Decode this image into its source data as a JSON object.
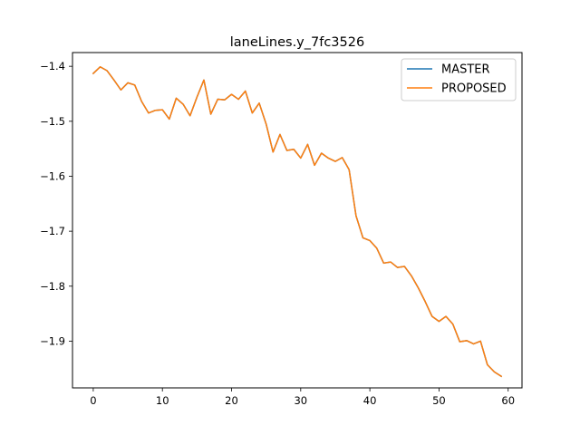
{
  "chart_data": {
    "type": "line",
    "title": "laneLines.y_7fc3526",
    "xlabel": "",
    "ylabel": "",
    "xlim": [
      -3,
      62
    ],
    "ylim": [
      -1.985,
      -1.375
    ],
    "xticks": [
      0,
      10,
      20,
      30,
      40,
      50,
      60
    ],
    "yticks": [
      -1.4,
      -1.5,
      -1.6,
      -1.7,
      -1.8,
      -1.9
    ],
    "grid": false,
    "legend_position": "top-right",
    "x": [
      0,
      1,
      2,
      3,
      4,
      5,
      6,
      7,
      8,
      9,
      10,
      11,
      12,
      13,
      14,
      15,
      16,
      17,
      18,
      19,
      20,
      21,
      22,
      23,
      24,
      25,
      26,
      27,
      28,
      29,
      30,
      31,
      32,
      33,
      34,
      35,
      36,
      37,
      38,
      39,
      40,
      41,
      42,
      43,
      44,
      45,
      46,
      47,
      48,
      49,
      50,
      51,
      52,
      53,
      54,
      55,
      56,
      57,
      58,
      59
    ],
    "series": [
      {
        "name": "MASTER",
        "color": "#1f77b4",
        "values": [
          -1.413,
          -1.401,
          -1.408,
          -1.425,
          -1.443,
          -1.43,
          -1.434,
          -1.464,
          -1.485,
          -1.48,
          -1.479,
          -1.496,
          -1.458,
          -1.469,
          -1.49,
          -1.456,
          -1.425,
          -1.487,
          -1.46,
          -1.461,
          -1.451,
          -1.46,
          -1.445,
          -1.485,
          -1.467,
          -1.505,
          -1.556,
          -1.524,
          -1.553,
          -1.551,
          -1.567,
          -1.542,
          -1.58,
          -1.558,
          -1.567,
          -1.573,
          -1.566,
          -1.588,
          -1.672,
          -1.712,
          -1.717,
          -1.731,
          -1.758,
          -1.756,
          -1.766,
          -1.764,
          -1.781,
          -1.803,
          -1.828,
          -1.855,
          -1.864,
          -1.855,
          -1.869,
          -1.901,
          -1.899,
          -1.905,
          -1.9,
          -1.943,
          -1.956,
          -1.964
        ]
      },
      {
        "name": "PROPOSED",
        "color": "#ff7f0e",
        "values": [
          -1.413,
          -1.401,
          -1.408,
          -1.425,
          -1.443,
          -1.43,
          -1.434,
          -1.464,
          -1.485,
          -1.48,
          -1.479,
          -1.496,
          -1.458,
          -1.469,
          -1.49,
          -1.456,
          -1.425,
          -1.487,
          -1.46,
          -1.461,
          -1.451,
          -1.46,
          -1.445,
          -1.485,
          -1.467,
          -1.505,
          -1.556,
          -1.524,
          -1.553,
          -1.551,
          -1.567,
          -1.542,
          -1.58,
          -1.558,
          -1.567,
          -1.573,
          -1.566,
          -1.588,
          -1.672,
          -1.712,
          -1.717,
          -1.731,
          -1.758,
          -1.756,
          -1.766,
          -1.764,
          -1.781,
          -1.803,
          -1.828,
          -1.855,
          -1.864,
          -1.855,
          -1.869,
          -1.901,
          -1.899,
          -1.905,
          -1.9,
          -1.943,
          -1.956,
          -1.964
        ]
      }
    ]
  }
}
